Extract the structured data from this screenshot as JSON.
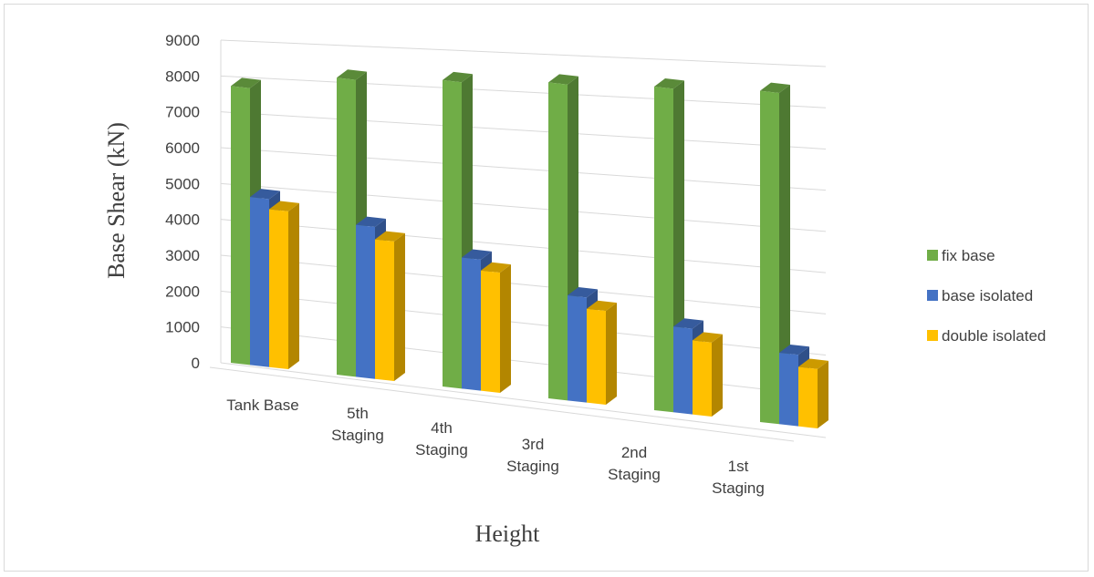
{
  "chart_data": {
    "type": "bar",
    "title": "",
    "xlabel": "Height",
    "ylabel": "Base Shear  (kN)",
    "ylim": [
      0,
      9000
    ],
    "yticks": [
      "0",
      "1000",
      "2000",
      "3000",
      "4000",
      "5000",
      "6000",
      "7000",
      "8000",
      "9000"
    ],
    "categories": [
      "Tank Base",
      "5th Staging",
      "4th Staging",
      "3rd Staging",
      "2nd Staging",
      "1st Staging"
    ],
    "series": [
      {
        "name": "fix base",
        "color": "#70ad47",
        "values": [
          7700,
          8050,
          8100,
          8150,
          8150,
          8150
        ]
      },
      {
        "name": "base isolated",
        "color": "#4472c4",
        "values": [
          4650,
          4100,
          3450,
          2700,
          2150,
          1750
        ]
      },
      {
        "name": "double isolated",
        "color": "#ffc000",
        "values": [
          4350,
          3750,
          3150,
          2400,
          1850,
          1450
        ]
      }
    ],
    "legend_position": "right",
    "grid": true
  }
}
